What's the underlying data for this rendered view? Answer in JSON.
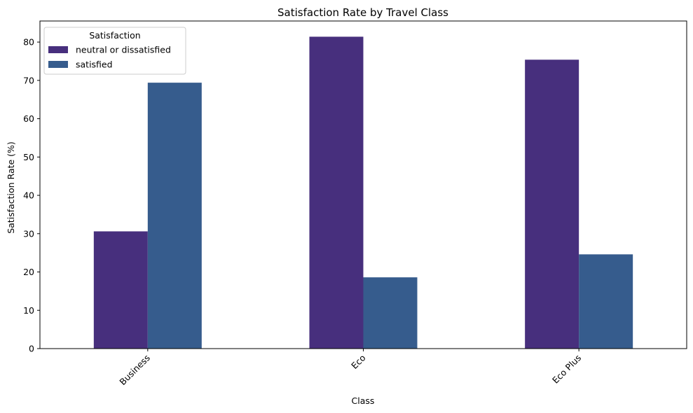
{
  "chart_data": {
    "type": "bar",
    "title": "Satisfaction Rate by Travel Class",
    "xlabel": "Class",
    "ylabel": "Satisfaction Rate (%)",
    "categories": [
      "Business",
      "Eco",
      "Eco Plus"
    ],
    "series": [
      {
        "name": "neutral or dissatisfied",
        "values": [
          30.6,
          81.4,
          75.4
        ],
        "color": "#472f7d"
      },
      {
        "name": "satisfied",
        "values": [
          69.4,
          18.6,
          24.6
        ],
        "color": "#365c8d"
      }
    ],
    "ylim": [
      0,
      85.5
    ],
    "yticks": [
      0,
      10,
      20,
      30,
      40,
      50,
      60,
      70,
      80
    ],
    "xtick_rotation": 45,
    "grid": false,
    "legend": {
      "title": "Satisfaction",
      "placement": "top-left"
    }
  }
}
